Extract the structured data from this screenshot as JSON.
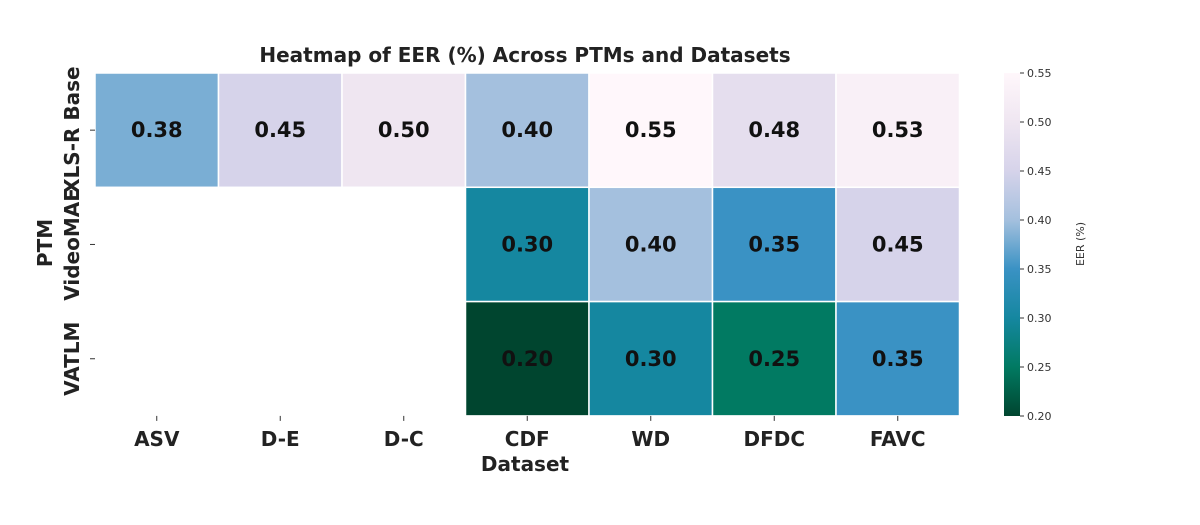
{
  "chart_data": {
    "type": "heatmap",
    "title": "Heatmap of EER (%) Across PTMs and Datasets",
    "xlabel": "Dataset",
    "ylabel": "PTM",
    "x_categories": [
      "ASV",
      "D-E",
      "D-C",
      "CDF",
      "WD",
      "DFDC",
      "FAVC"
    ],
    "y_categories": [
      "XLS-R Base",
      "VideoMAE",
      "VATLM"
    ],
    "values": [
      [
        0.38,
        0.45,
        0.5,
        0.4,
        0.55,
        0.48,
        0.53
      ],
      [
        null,
        null,
        null,
        0.3,
        0.4,
        0.35,
        0.45
      ],
      [
        null,
        null,
        null,
        0.2,
        0.3,
        0.25,
        0.35
      ]
    ],
    "value_labels": [
      [
        "0.38",
        "0.45",
        "0.50",
        "0.40",
        "0.55",
        "0.48",
        "0.53"
      ],
      [
        "",
        "",
        "",
        "0.30",
        "0.40",
        "0.35",
        "0.45"
      ],
      [
        "",
        "",
        "",
        "0.20",
        "0.30",
        "0.25",
        "0.35"
      ]
    ],
    "colorbar": {
      "label": "EER (%)",
      "range": [
        0.2,
        0.55
      ],
      "ticks": [
        "0.20",
        "0.25",
        "0.30",
        "0.35",
        "0.40",
        "0.45",
        "0.50",
        "0.55"
      ],
      "colormap_stops": [
        "#00452f",
        "#017a62",
        "#1587a0",
        "#3a92c4",
        "#a4c0de",
        "#d6d3ea",
        "#efe6f1",
        "#fff7fb"
      ]
    },
    "grid": false,
    "cell_borders": "white"
  }
}
